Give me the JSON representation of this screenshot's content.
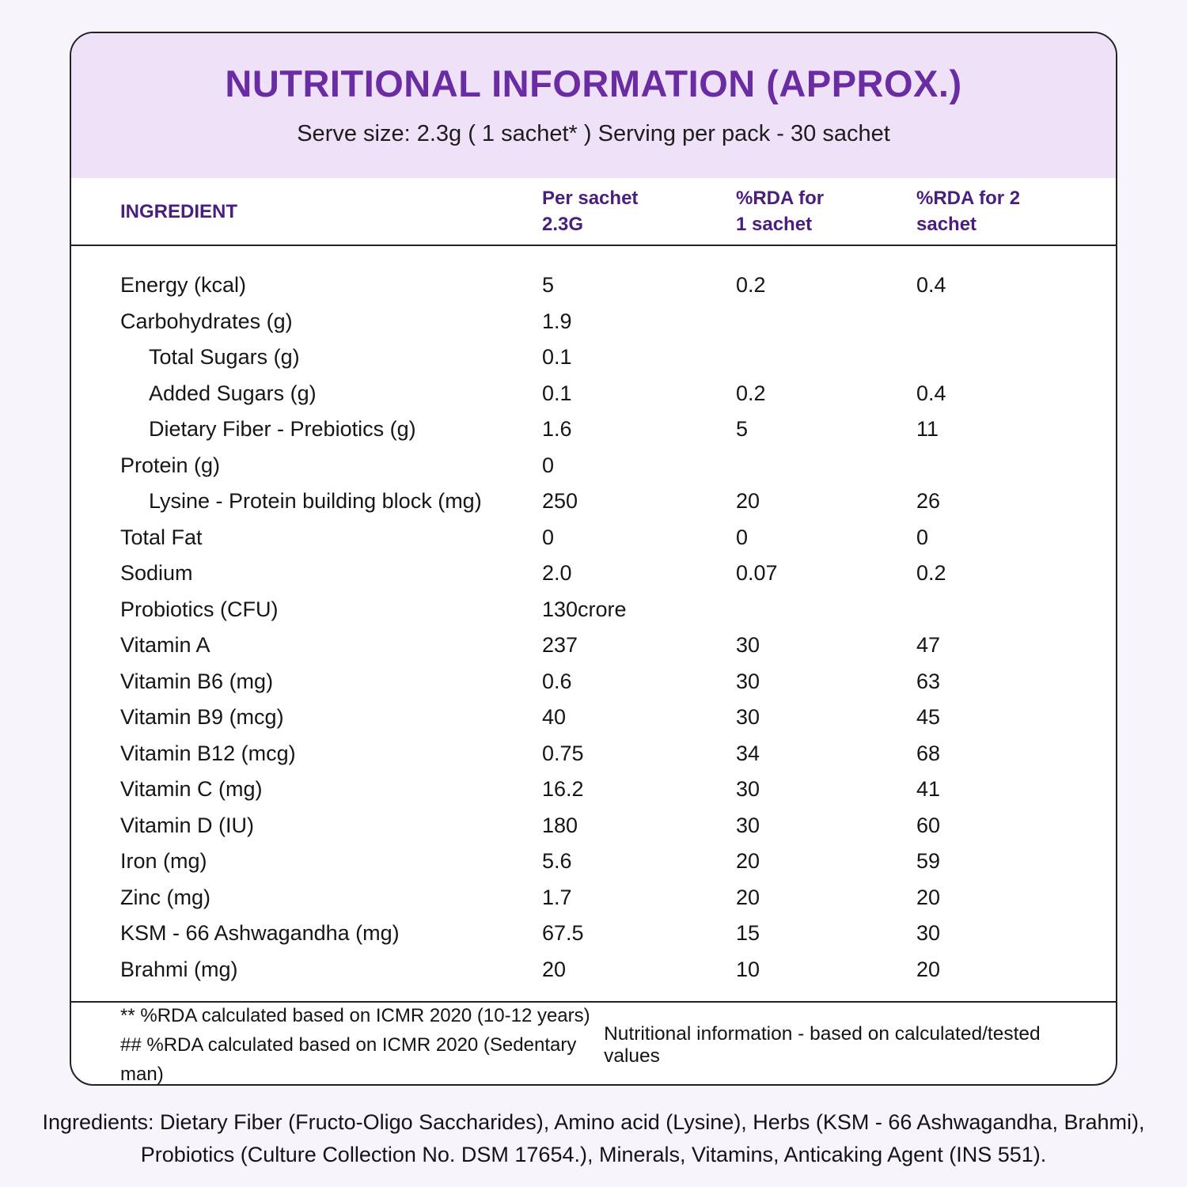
{
  "header": {
    "title": "NUTRITIONAL INFORMATION (APPROX.)",
    "subtitle": "Serve size: 2.3g ( 1 sachet* ) Serving per pack - 30 sachet"
  },
  "table": {
    "columns": {
      "ingredient": "INGREDIENT",
      "per_sachet": {
        "line1": "Per sachet",
        "line2": "2.3G"
      },
      "rda_1": {
        "line1": "%RDA for",
        "line2": "1 sachet"
      },
      "rda_2": {
        "line1": "%RDA for 2",
        "line2": "sachet"
      }
    },
    "rows": [
      {
        "label": "Energy (kcal)",
        "indent": false,
        "per_sachet": "5",
        "rda_1_sachet": "0.2",
        "rda_2_sachet": "0.4"
      },
      {
        "label": "Carbohydrates (g)",
        "indent": false,
        "per_sachet": "1.9",
        "rda_1_sachet": "",
        "rda_2_sachet": ""
      },
      {
        "label": "Total Sugars (g)",
        "indent": true,
        "per_sachet": "0.1",
        "rda_1_sachet": "",
        "rda_2_sachet": ""
      },
      {
        "label": "Added Sugars (g)",
        "indent": true,
        "per_sachet": "0.1",
        "rda_1_sachet": "0.2",
        "rda_2_sachet": "0.4"
      },
      {
        "label": "Dietary Fiber - Prebiotics (g)",
        "indent": true,
        "per_sachet": "1.6",
        "rda_1_sachet": "5",
        "rda_2_sachet": "11"
      },
      {
        "label": "Protein (g)",
        "indent": false,
        "per_sachet": "0",
        "rda_1_sachet": "",
        "rda_2_sachet": ""
      },
      {
        "label": "Lysine - Protein building block (mg)",
        "indent": true,
        "per_sachet": "250",
        "rda_1_sachet": "20",
        "rda_2_sachet": "26"
      },
      {
        "label": "Total Fat",
        "indent": false,
        "per_sachet": "0",
        "rda_1_sachet": "0",
        "rda_2_sachet": "0"
      },
      {
        "label": "Sodium",
        "indent": false,
        "per_sachet": "2.0",
        "rda_1_sachet": "0.07",
        "rda_2_sachet": "0.2"
      },
      {
        "label": "Probiotics (CFU)",
        "indent": false,
        "per_sachet": "130crore",
        "rda_1_sachet": "",
        "rda_2_sachet": ""
      },
      {
        "label": "Vitamin A",
        "indent": false,
        "per_sachet": "237",
        "rda_1_sachet": "30",
        "rda_2_sachet": "47"
      },
      {
        "label": "Vitamin B6 (mg)",
        "indent": false,
        "per_sachet": "0.6",
        "rda_1_sachet": "30",
        "rda_2_sachet": "63"
      },
      {
        "label": "Vitamin B9 (mcg)",
        "indent": false,
        "per_sachet": "40",
        "rda_1_sachet": "30",
        "rda_2_sachet": "45"
      },
      {
        "label": "Vitamin B12 (mcg)",
        "indent": false,
        "per_sachet": "0.75",
        "rda_1_sachet": "34",
        "rda_2_sachet": "68"
      },
      {
        "label": "Vitamin C (mg)",
        "indent": false,
        "per_sachet": "16.2",
        "rda_1_sachet": "30",
        "rda_2_sachet": "41"
      },
      {
        "label": "Vitamin D (IU)",
        "indent": false,
        "per_sachet": "180",
        "rda_1_sachet": "30",
        "rda_2_sachet": "60"
      },
      {
        "label": "Iron (mg)",
        "indent": false,
        "per_sachet": "5.6",
        "rda_1_sachet": "20",
        "rda_2_sachet": "59"
      },
      {
        "label": "Zinc (mg)",
        "indent": false,
        "per_sachet": "1.7",
        "rda_1_sachet": "20",
        "rda_2_sachet": "20"
      },
      {
        "label": "KSM - 66 Ashwagandha (mg)",
        "indent": false,
        "per_sachet": "67.5",
        "rda_1_sachet": "15",
        "rda_2_sachet": "30"
      },
      {
        "label": "Brahmi (mg)",
        "indent": false,
        "per_sachet": "20",
        "rda_1_sachet": "10",
        "rda_2_sachet": "20"
      }
    ]
  },
  "footnotes": {
    "note1": "** %RDA calculated based on ICMR 2020 (10-12 years)",
    "note2": "## %RDA calculated based on ICMR 2020 (Sedentary man)",
    "right_note": "Nutritional information - based on calculated/tested values"
  },
  "ingredients_text": "Ingredients: Dietary Fiber (Fructo-Oligo Saccharides), Amino acid (Lysine), Herbs (KSM - 66 Ashwagandha, Brahmi), Probiotics (Culture Collection No. DSM 17654.), Minerals, Vitamins, Anticaking Agent (INS 551).",
  "colors": {
    "page_bg": "#F7F4FB",
    "card_bg": "#FFFFFF",
    "card_border": "#222222",
    "header_band_bg": "#EFE1F8",
    "title_purple": "#6A2CA3",
    "column_header_purple": "#4A1E7C",
    "body_text": "#161616"
  }
}
